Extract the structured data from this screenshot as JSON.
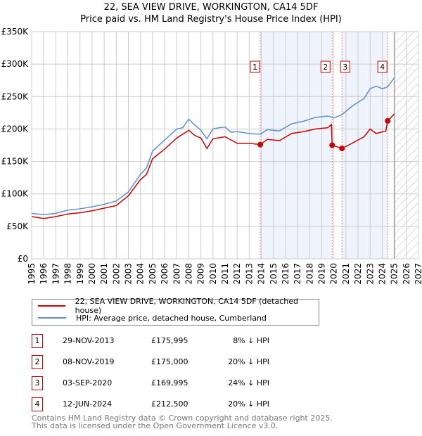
{
  "title_line1": "22, SEA VIEW DRIVE, WORKINGTON, CA14 5DF",
  "title_line2": "Price paid vs. HM Land Registry's House Price Index (HPI)",
  "chart_data": {
    "type": "line",
    "title": "22, SEA VIEW DRIVE, WORKINGTON, CA14 5DF - Price paid vs. HM Land Registry's House Price Index (HPI)",
    "xlim": [
      1995,
      2027
    ],
    "ylim": [
      0,
      350000
    ],
    "x_ticks": [
      "1995",
      "1996",
      "1997",
      "1998",
      "1999",
      "2000",
      "2001",
      "2002",
      "2003",
      "2004",
      "2005",
      "2006",
      "2007",
      "2008",
      "2009",
      "2010",
      "2011",
      "2012",
      "2013",
      "2014",
      "2015",
      "2016",
      "2017",
      "2018",
      "2019",
      "2020",
      "2021",
      "2022",
      "2023",
      "2024",
      "2025",
      "2026",
      "2027"
    ],
    "y_ticks": [
      {
        "v": 0,
        "label": "£0"
      },
      {
        "v": 50000,
        "label": "£50K"
      },
      {
        "v": 100000,
        "label": "£100K"
      },
      {
        "v": 150000,
        "label": "£150K"
      },
      {
        "v": 200000,
        "label": "£200K"
      },
      {
        "v": 250000,
        "label": "£250K"
      },
      {
        "v": 300000,
        "label": "£300K"
      },
      {
        "v": 350000,
        "label": "£350K"
      }
    ],
    "grid": true,
    "series": [
      {
        "name": "22, SEA VIEW DRIVE, WORKINGTON, CA14 5DF (detached house)",
        "color": "#cc0000",
        "x": [
          1995,
          1996,
          1997,
          1998,
          1999,
          2000,
          2001,
          2002,
          2003,
          2004,
          2004.5,
          2005,
          2006,
          2007,
          2008,
          2008.5,
          2009,
          2009.5,
          2010,
          2011,
          2012,
          2013,
          2013.91,
          2014.5,
          2015.5,
          2016.5,
          2017.5,
          2018.5,
          2019.5,
          2019.8,
          2019.86,
          2020.67,
          2021.5,
          2022.5,
          2023,
          2023.5,
          2024.3,
          2024.45,
          2025
        ],
        "y": [
          65000,
          62000,
          65000,
          69000,
          71000,
          74000,
          78000,
          82000,
          97000,
          122000,
          130000,
          154000,
          169000,
          186000,
          198000,
          190000,
          186000,
          170000,
          185000,
          188000,
          178000,
          178000,
          175995,
          184000,
          182000,
          193000,
          196000,
          200000,
          202000,
          207000,
          175000,
          169995,
          178000,
          188000,
          200000,
          193000,
          197000,
          212500,
          223000
        ]
      },
      {
        "name": "HPI: Average price, detached house, Cumberland",
        "color": "#5b8fd0",
        "x": [
          1995,
          1996,
          1997,
          1998,
          1999,
          2000,
          2001,
          2002,
          2003,
          2004,
          2004.5,
          2005,
          2006,
          2007,
          2007.5,
          2008,
          2008.5,
          2009,
          2009.5,
          2010,
          2010.5,
          2011,
          2011.5,
          2012,
          2013,
          2013.91,
          2014.5,
          2015.5,
          2016.5,
          2017.5,
          2018.5,
          2019.5,
          2020,
          2020.67,
          2021.5,
          2022.5,
          2023,
          2023.5,
          2024,
          2024.45,
          2025
        ],
        "y": [
          70000,
          68000,
          70000,
          75000,
          77000,
          80000,
          84000,
          89000,
          103000,
          130000,
          140000,
          166000,
          183000,
          200000,
          202000,
          215000,
          206000,
          198000,
          185000,
          200000,
          202000,
          203000,
          195000,
          196000,
          193000,
          192000,
          199000,
          197000,
          208000,
          212000,
          218000,
          220000,
          217000,
          222000,
          235000,
          247000,
          262000,
          266000,
          262000,
          265000,
          279000
        ]
      }
    ],
    "sales": [
      {
        "id": "1",
        "x": 2013.91,
        "y": 175995
      },
      {
        "id": "2",
        "x": 2019.86,
        "y": 175000
      },
      {
        "id": "3",
        "x": 2020.67,
        "y": 169995
      },
      {
        "id": "4",
        "x": 2024.45,
        "y": 212500
      }
    ],
    "shaded_ranges": [
      [
        2013.91,
        2019.86
      ],
      [
        2020.67,
        2024.45
      ]
    ],
    "forecast_hatch": [
      2025,
      2027
    ],
    "legend_position": "bottom"
  },
  "legend": {
    "property": "22, SEA VIEW DRIVE, WORKINGTON, CA14 5DF (detached house)",
    "hpi": "HPI: Average price, detached house, Cumberland"
  },
  "table": [
    {
      "id": "1",
      "date": "29-NOV-2013",
      "price": "£175,995",
      "diff": "8% ↓ HPI"
    },
    {
      "id": "2",
      "date": "08-NOV-2019",
      "price": "£175,000",
      "diff": "20% ↓ HPI"
    },
    {
      "id": "3",
      "date": "03-SEP-2020",
      "price": "£169,995",
      "diff": "24% ↓ HPI"
    },
    {
      "id": "4",
      "date": "12-JUN-2024",
      "price": "£212,500",
      "diff": "20% ↓ HPI"
    }
  ],
  "footer_line1": "Contains HM Land Registry data © Crown copyright and database right 2025.",
  "footer_line2": "This data is licensed under the Open Government Licence v3.0."
}
